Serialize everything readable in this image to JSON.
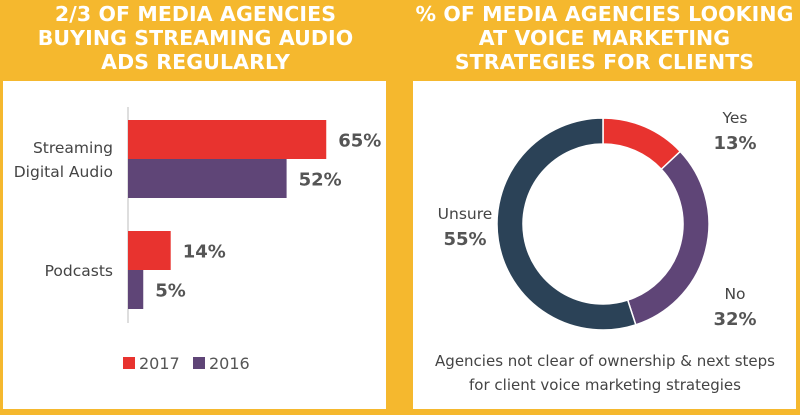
{
  "left": {
    "title_lines": [
      "2/3 OF MEDIA AGENCIES",
      "BUYING STREAMING AUDIO",
      "ADS REGULARLY"
    ]
  },
  "right": {
    "title_lines": [
      "% OF MEDIA AGENCIES LOOKING",
      "AT VOICE MARKETING",
      "STRATEGIES FOR CLIENTS"
    ],
    "caption_lines": [
      "Agencies not clear of ownership & next steps",
      "for client voice marketing strategies"
    ]
  },
  "chart_data": [
    {
      "type": "bar",
      "orientation": "horizontal",
      "title": "2/3 OF MEDIA AGENCIES BUYING STREAMING AUDIO ADS REGULARLY",
      "categories": [
        [
          "Streaming",
          "Digital Audio"
        ],
        [
          "Podcasts"
        ]
      ],
      "series": [
        {
          "name": "2017",
          "color": "#e8332f",
          "values": [
            65,
            14
          ],
          "labels": [
            "65%",
            "14%"
          ]
        },
        {
          "name": "2016",
          "color": "#5f4577",
          "values": [
            52,
            5
          ],
          "labels": [
            "52%",
            "5%"
          ]
        }
      ],
      "xlim": [
        0,
        100
      ],
      "legend": "bottom",
      "grid": false
    },
    {
      "type": "pie",
      "donut": true,
      "title": "% OF MEDIA AGENCIES LOOKING AT VOICE MARKETING STRATEGIES FOR CLIENTS",
      "slices": [
        {
          "label": "Yes",
          "value": 13,
          "value_label": "13%",
          "color": "#e8332f"
        },
        {
          "label": "No",
          "value": 32,
          "value_label": "32%",
          "color": "#5f4577"
        },
        {
          "label": "Unsure",
          "value": 55,
          "value_label": "55%",
          "color": "#2b4257"
        }
      ]
    }
  ]
}
